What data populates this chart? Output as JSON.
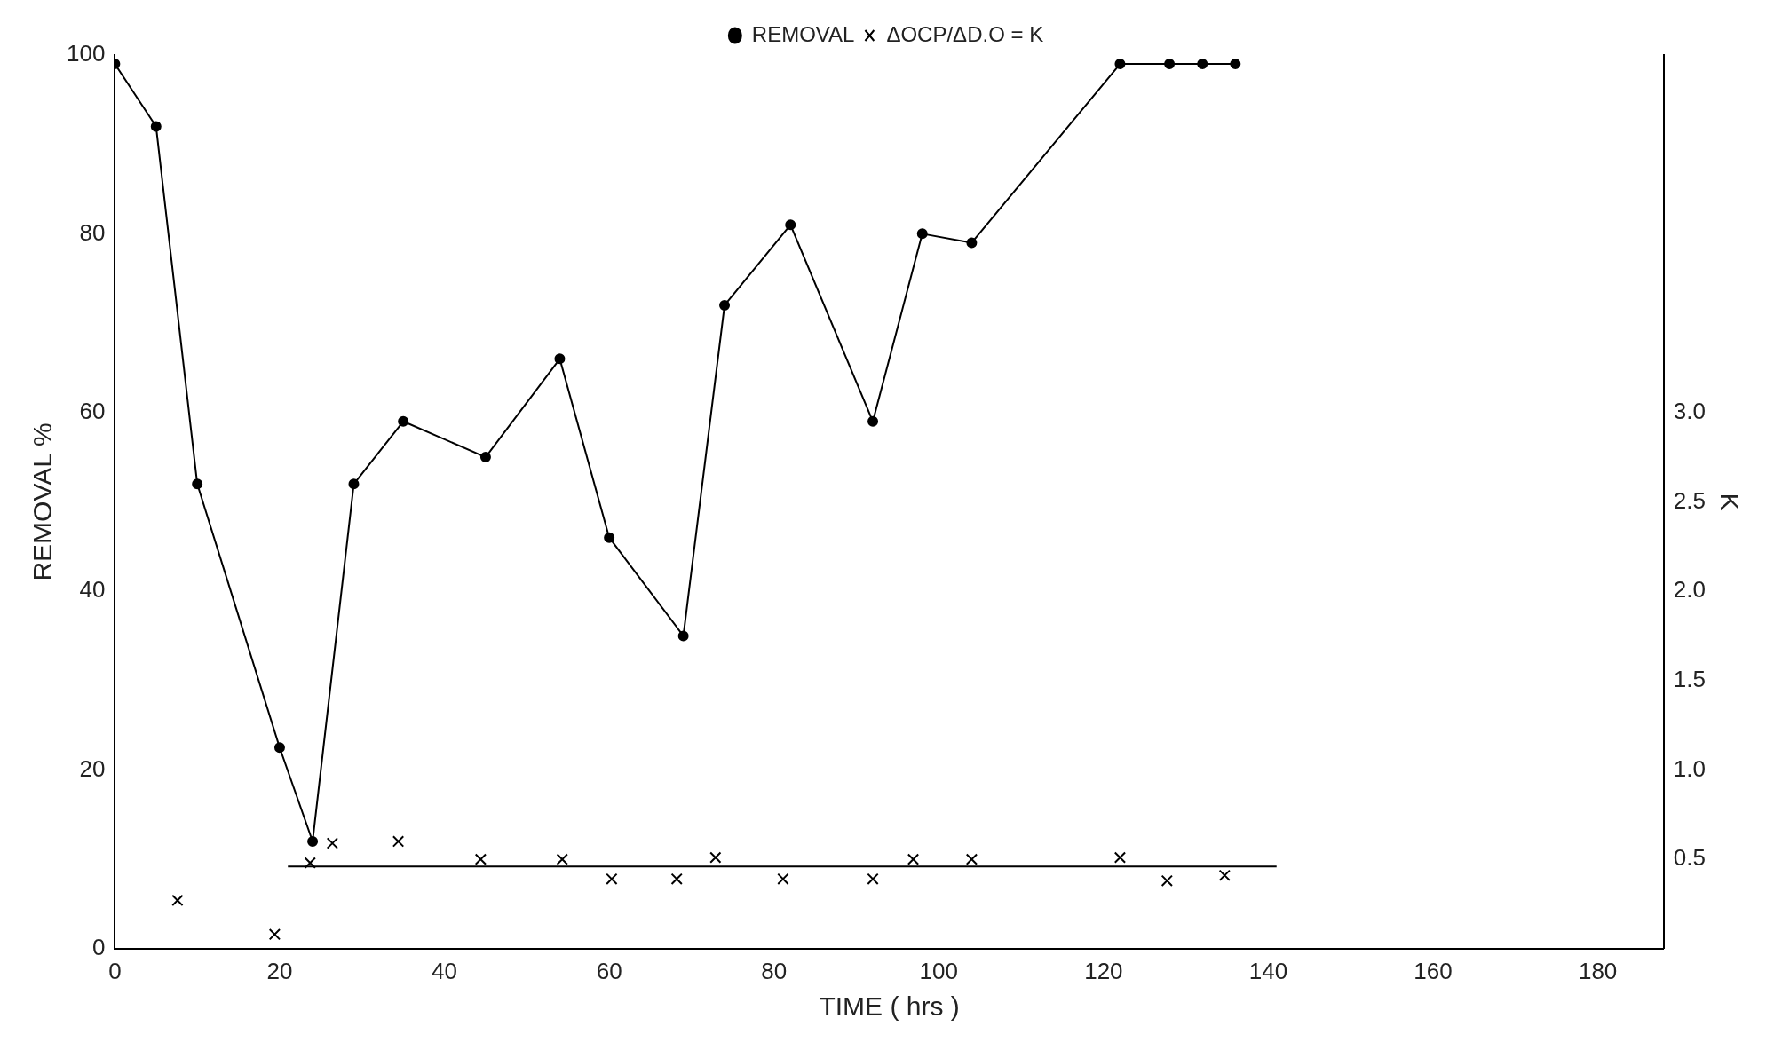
{
  "chart_data": {
    "type": "line",
    "xlabel": "TIME ( hrs )",
    "ylabel": "REMOVAL %",
    "y2label": "K",
    "xlim": [
      0,
      188
    ],
    "xticks": [
      0,
      20,
      40,
      60,
      80,
      100,
      120,
      140,
      160,
      180
    ],
    "ylim": [
      0,
      100
    ],
    "yticks": [
      0,
      20,
      40,
      60,
      80,
      100
    ],
    "y2lim": [
      0,
      5
    ],
    "y2ticks": [
      {
        "value": 0.5,
        "label": "0.5"
      },
      {
        "value": 1,
        "label": "1.0"
      },
      {
        "value": 1.5,
        "label": "1.5"
      },
      {
        "value": 2,
        "label": "2.0"
      },
      {
        "value": 2.5,
        "label": "2.5"
      },
      {
        "value": 3,
        "label": "3.0"
      }
    ],
    "grid": false,
    "legend": "top",
    "series": [
      {
        "name": "REMOVAL",
        "type": "line",
        "marker": "circle",
        "color": "#000000",
        "x": [
          0,
          5,
          10,
          20,
          24,
          29,
          35,
          45,
          54,
          60,
          69,
          74,
          82,
          92,
          98,
          104,
          122,
          128,
          132,
          136
        ],
        "values": [
          99,
          92,
          52,
          22.5,
          12,
          52,
          59,
          55,
          66,
          46,
          35,
          72,
          81,
          59,
          80,
          79,
          99,
          99,
          99,
          99
        ]
      },
      {
        "name": "ΔOCP/ΔD.O = K",
        "type": "scatter",
        "marker": "cross",
        "axis": "y2",
        "color": "#000000",
        "x": [
          7.6,
          19.4,
          23.7,
          26.4,
          34.4,
          44.4,
          54.3,
          60.3,
          68.2,
          72.9,
          81.1,
          92,
          96.9,
          104,
          122,
          127.7,
          134.7
        ],
        "values": [
          0.27,
          0.08,
          0.48,
          0.59,
          0.6,
          0.5,
          0.5,
          0.39,
          0.39,
          0.51,
          0.39,
          0.39,
          0.5,
          0.5,
          0.51,
          0.38,
          0.41
        ]
      },
      {
        "type": "line",
        "marker": "none",
        "axis": "y2",
        "color": "#000000",
        "x": [
          21,
          141
        ],
        "values": [
          0.46,
          0.46
        ]
      }
    ]
  }
}
